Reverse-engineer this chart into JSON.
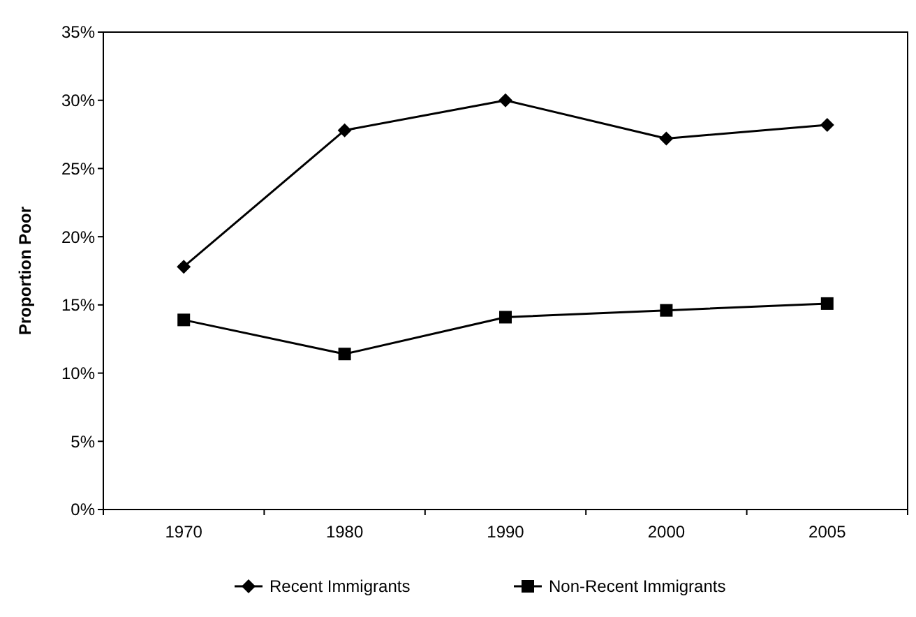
{
  "chart_data": {
    "type": "line",
    "ylabel": "Proportion Poor",
    "categories": [
      "1970",
      "1980",
      "1990",
      "2000",
      "2005"
    ],
    "series": [
      {
        "name": "Recent Immigrants",
        "color": "#000000",
        "marker": "diamond",
        "values": [
          17.8,
          27.8,
          30.0,
          27.2,
          28.2
        ]
      },
      {
        "name": "Non-Recent Immigrants",
        "color": "#000000",
        "marker": "square",
        "values": [
          13.9,
          11.4,
          14.1,
          14.6,
          15.1
        ]
      }
    ],
    "ylim": [
      0,
      35
    ],
    "yticks": [
      {
        "value": 0,
        "label": "0%"
      },
      {
        "value": 5,
        "label": "5%"
      },
      {
        "value": 10,
        "label": "10%"
      },
      {
        "value": 15,
        "label": "15%"
      },
      {
        "value": 20,
        "label": "20%"
      },
      {
        "value": 25,
        "label": "25%"
      },
      {
        "value": 30,
        "label": "30%"
      },
      {
        "value": 35,
        "label": "35%"
      }
    ],
    "grid": false,
    "legend": "bottom",
    "line_style": "solid"
  }
}
